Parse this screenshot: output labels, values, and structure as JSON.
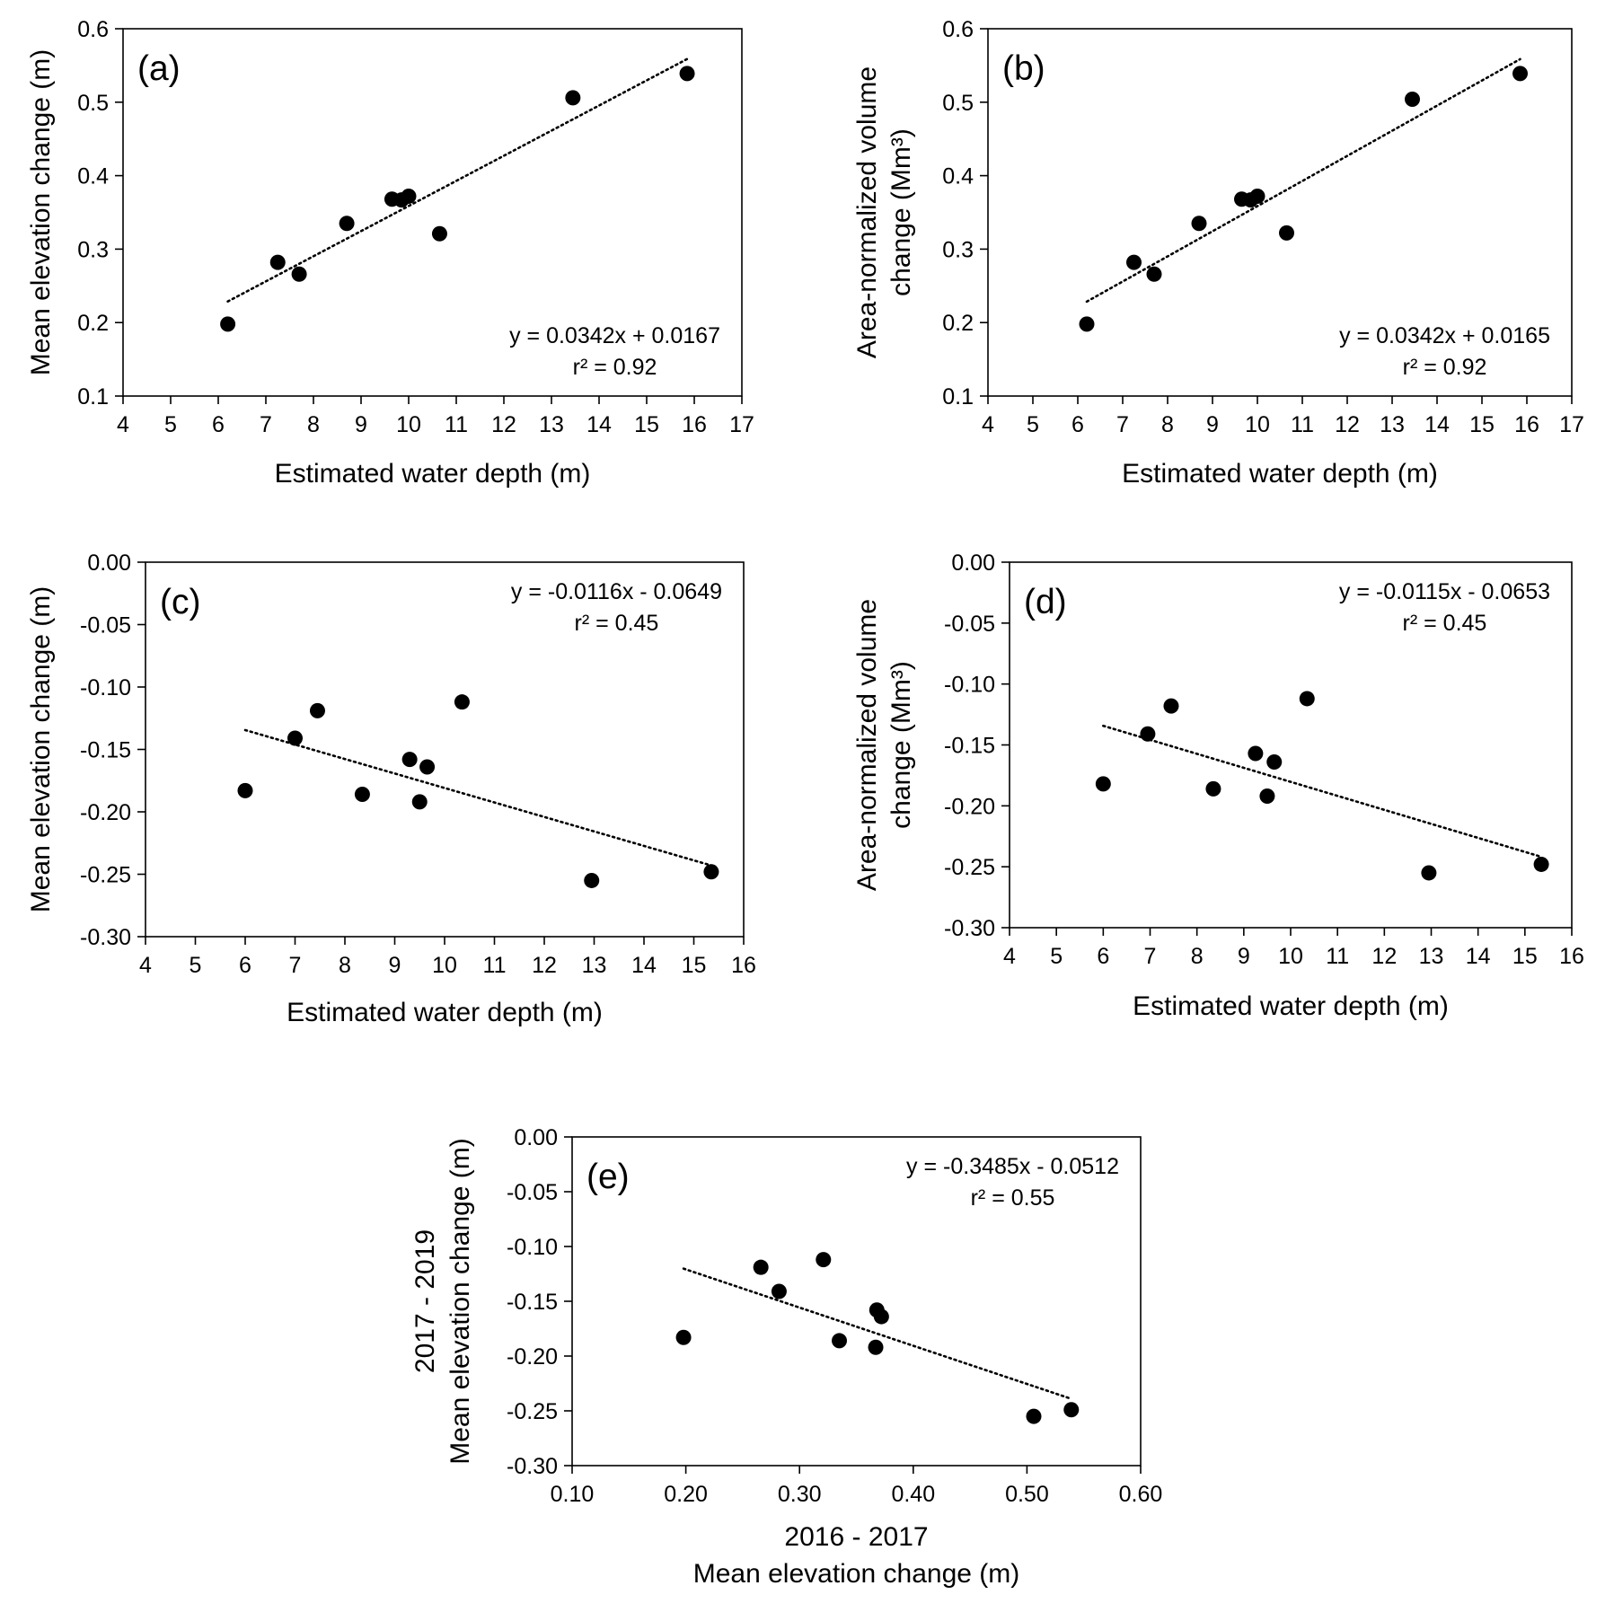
{
  "chart_data": [
    {
      "type": "scatter",
      "panel_label": "(a)",
      "xlabel": "Estimated water depth (m)",
      "ylabel": [
        "Mean elevation change (m)"
      ],
      "xlim": [
        4,
        17
      ],
      "ylim": [
        0.1,
        0.6
      ],
      "xticks": [
        4,
        5,
        6,
        7,
        8,
        9,
        10,
        11,
        12,
        13,
        14,
        15,
        16,
        17
      ],
      "yticks": [
        0.1,
        0.2,
        0.3,
        0.4,
        0.5,
        0.6
      ],
      "xtick_labels": [
        "4",
        "5",
        "6",
        "7",
        "8",
        "9",
        "10",
        "11",
        "12",
        "13",
        "14",
        "15",
        "16",
        "17"
      ],
      "ytick_labels": [
        "0.1",
        "0.2",
        "0.3",
        "0.4",
        "0.5",
        "0.6"
      ],
      "points": [
        [
          6.2,
          0.198
        ],
        [
          7.25,
          0.282
        ],
        [
          7.7,
          0.266
        ],
        [
          8.7,
          0.335
        ],
        [
          9.65,
          0.368
        ],
        [
          9.85,
          0.367
        ],
        [
          10.0,
          0.372
        ],
        [
          10.65,
          0.321
        ],
        [
          13.45,
          0.506
        ],
        [
          15.85,
          0.539
        ]
      ],
      "trendline": {
        "slope": 0.0342,
        "intercept": 0.0167,
        "x_range": [
          6.2,
          15.85
        ],
        "style": "dotted"
      },
      "annotations": [
        "y = 0.0342x + 0.0167",
        "r² = 0.92"
      ],
      "annotation_position": "bottom-right",
      "grid": false
    },
    {
      "type": "scatter",
      "panel_label": "(b)",
      "xlabel": "Estimated water depth (m)",
      "ylabel": [
        "Area-normalized volume",
        "change (Mm³)"
      ],
      "xlim": [
        4,
        17
      ],
      "ylim": [
        0.1,
        0.6
      ],
      "xticks": [
        4,
        5,
        6,
        7,
        8,
        9,
        10,
        11,
        12,
        13,
        14,
        15,
        16,
        17
      ],
      "yticks": [
        0.1,
        0.2,
        0.3,
        0.4,
        0.5,
        0.6
      ],
      "xtick_labels": [
        "4",
        "5",
        "6",
        "7",
        "8",
        "9",
        "10",
        "11",
        "12",
        "13",
        "14",
        "15",
        "16",
        "17"
      ],
      "ytick_labels": [
        "0.1",
        "0.2",
        "0.3",
        "0.4",
        "0.5",
        "0.6"
      ],
      "points": [
        [
          6.2,
          0.198
        ],
        [
          7.25,
          0.282
        ],
        [
          7.7,
          0.266
        ],
        [
          8.7,
          0.335
        ],
        [
          9.65,
          0.368
        ],
        [
          9.85,
          0.367
        ],
        [
          10.0,
          0.372
        ],
        [
          10.65,
          0.322
        ],
        [
          13.45,
          0.504
        ],
        [
          15.85,
          0.539
        ]
      ],
      "trendline": {
        "slope": 0.0342,
        "intercept": 0.0165,
        "x_range": [
          6.2,
          15.85
        ],
        "style": "dotted"
      },
      "annotations": [
        "y = 0.0342x + 0.0165",
        "r² = 0.92"
      ],
      "annotation_position": "bottom-right",
      "grid": false
    },
    {
      "type": "scatter",
      "panel_label": "(c)",
      "xlabel": "Estimated water depth (m)",
      "ylabel": [
        "Mean elevation change (m)"
      ],
      "xlim": [
        4,
        16
      ],
      "ylim": [
        -0.3,
        0.0
      ],
      "xticks": [
        4,
        5,
        6,
        7,
        8,
        9,
        10,
        11,
        12,
        13,
        14,
        15,
        16
      ],
      "yticks": [
        -0.3,
        -0.25,
        -0.2,
        -0.15,
        -0.1,
        -0.05,
        0.0
      ],
      "xtick_labels": [
        "4",
        "5",
        "6",
        "7",
        "8",
        "9",
        "10",
        "11",
        "12",
        "13",
        "14",
        "15",
        "16"
      ],
      "ytick_labels": [
        "-0.30",
        "-0.25",
        "-0.20",
        "-0.15",
        "-0.10",
        "-0.05",
        "0.00"
      ],
      "points": [
        [
          6.0,
          -0.183
        ],
        [
          7.0,
          -0.141
        ],
        [
          7.45,
          -0.119
        ],
        [
          8.35,
          -0.186
        ],
        [
          9.3,
          -0.158
        ],
        [
          9.5,
          -0.192
        ],
        [
          9.65,
          -0.164
        ],
        [
          10.35,
          -0.112
        ],
        [
          12.95,
          -0.255
        ],
        [
          15.35,
          -0.248
        ]
      ],
      "trendline": {
        "slope": -0.0116,
        "intercept": -0.0649,
        "x_range": [
          6.0,
          15.35
        ],
        "style": "dotted"
      },
      "annotations": [
        "y = -0.0116x - 0.0649",
        "r² = 0.45"
      ],
      "annotation_position": "top-right",
      "grid": false
    },
    {
      "type": "scatter",
      "panel_label": "(d)",
      "xlabel": "Estimated water depth (m)",
      "ylabel": [
        "Area-normalized volume",
        "change (Mm³)"
      ],
      "xlim": [
        4,
        16
      ],
      "ylim": [
        -0.3,
        0.0
      ],
      "xticks": [
        4,
        5,
        6,
        7,
        8,
        9,
        10,
        11,
        12,
        13,
        14,
        15,
        16
      ],
      "yticks": [
        -0.3,
        -0.25,
        -0.2,
        -0.15,
        -0.1,
        -0.05,
        0.0
      ],
      "xtick_labels": [
        "4",
        "5",
        "6",
        "7",
        "8",
        "9",
        "10",
        "11",
        "12",
        "13",
        "14",
        "15",
        "16"
      ],
      "ytick_labels": [
        "-0.30",
        "-0.25",
        "-0.20",
        "-0.15",
        "-0.10",
        "-0.05",
        "0.00"
      ],
      "points": [
        [
          6.0,
          -0.182
        ],
        [
          6.95,
          -0.141
        ],
        [
          7.45,
          -0.118
        ],
        [
          8.35,
          -0.186
        ],
        [
          9.25,
          -0.157
        ],
        [
          9.5,
          -0.192
        ],
        [
          9.65,
          -0.164
        ],
        [
          10.35,
          -0.112
        ],
        [
          12.95,
          -0.255
        ],
        [
          15.35,
          -0.248
        ]
      ],
      "trendline": {
        "slope": -0.0115,
        "intercept": -0.0653,
        "x_range": [
          6.0,
          15.35
        ],
        "style": "dotted"
      },
      "annotations": [
        "y = -0.0115x - 0.0653",
        "r² = 0.45"
      ],
      "annotation_position": "top-right",
      "grid": false
    },
    {
      "type": "scatter",
      "panel_label": "(e)",
      "xlabel": [
        "2016 - 2017",
        "Mean elevation change (m)"
      ],
      "ylabel": [
        "2017 - 2019",
        "Mean elevation change (m)"
      ],
      "xlim": [
        0.1,
        0.6
      ],
      "ylim": [
        -0.3,
        0.0
      ],
      "xticks": [
        0.1,
        0.2,
        0.3,
        0.4,
        0.5,
        0.6
      ],
      "yticks": [
        -0.3,
        -0.25,
        -0.2,
        -0.15,
        -0.1,
        -0.05,
        0.0
      ],
      "xtick_labels": [
        "0.10",
        "0.20",
        "0.30",
        "0.40",
        "0.50",
        "0.60"
      ],
      "ytick_labels": [
        "-0.30",
        "-0.25",
        "-0.20",
        "-0.15",
        "-0.10",
        "-0.05",
        "0.00"
      ],
      "points": [
        [
          0.198,
          -0.183
        ],
        [
          0.266,
          -0.119
        ],
        [
          0.282,
          -0.141
        ],
        [
          0.321,
          -0.112
        ],
        [
          0.335,
          -0.186
        ],
        [
          0.367,
          -0.192
        ],
        [
          0.368,
          -0.158
        ],
        [
          0.372,
          -0.164
        ],
        [
          0.506,
          -0.255
        ],
        [
          0.539,
          -0.249
        ]
      ],
      "trendline": {
        "slope": -0.3485,
        "intercept": -0.0512,
        "x_range": [
          0.198,
          0.539
        ],
        "style": "dotted"
      },
      "annotations": [
        "y = -0.3485x - 0.0512",
        "r² = 0.55"
      ],
      "annotation_position": "top-right",
      "grid": false
    }
  ]
}
